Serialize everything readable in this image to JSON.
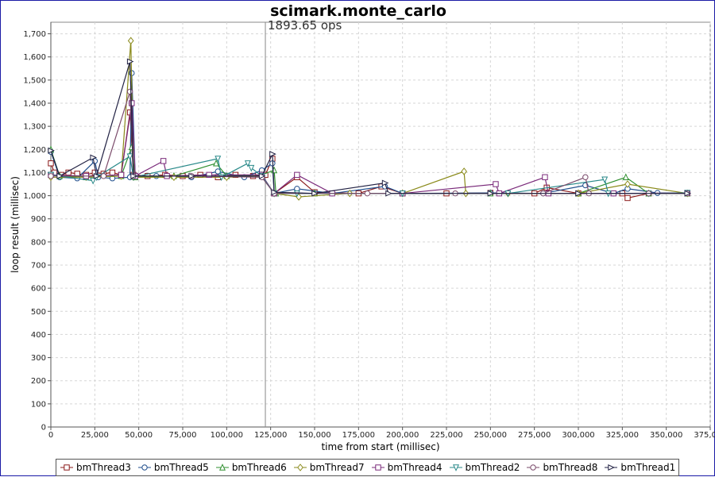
{
  "chart_data": {
    "type": "line",
    "title": "scimark.monte_carlo",
    "xlabel": "time from start (millisec)",
    "ylabel": "loop result (millisec)",
    "xlim": [
      0,
      375000
    ],
    "ylim": [
      0,
      1750
    ],
    "x_ticks": [
      "0",
      "25,000",
      "50,000",
      "75,000",
      "100,000",
      "125,000",
      "150,000",
      "175,000",
      "200,000",
      "225,000",
      "250,000",
      "275,000",
      "300,000",
      "325,000",
      "350,000",
      "375,000"
    ],
    "y_ticks": [
      "0",
      "100",
      "200",
      "300",
      "400",
      "500",
      "600",
      "700",
      "800",
      "900",
      "1,000",
      "1,100",
      "1,200",
      "1,300",
      "1,400",
      "1,500",
      "1,600",
      "1,700"
    ],
    "grid": true,
    "legend_position": "bottom",
    "annotation": {
      "text": "1893.65 ops",
      "x": 122000
    },
    "series": [
      {
        "name": "bmThread3",
        "marker": "square",
        "color": "#8b1a1a",
        "points": [
          [
            0,
            1140
          ],
          [
            2000,
            1100
          ],
          [
            6000,
            1090
          ],
          [
            10000,
            1100
          ],
          [
            15000,
            1095
          ],
          [
            20000,
            1090
          ],
          [
            25000,
            1100
          ],
          [
            30000,
            1095
          ],
          [
            35000,
            1100
          ],
          [
            40000,
            1090
          ],
          [
            45000,
            1360
          ],
          [
            47000,
            1090
          ],
          [
            55000,
            1085
          ],
          [
            65000,
            1090
          ],
          [
            75000,
            1085
          ],
          [
            85000,
            1090
          ],
          [
            95000,
            1080
          ],
          [
            105000,
            1090
          ],
          [
            115000,
            1085
          ],
          [
            122000,
            1090
          ],
          [
            126000,
            1160
          ],
          [
            127000,
            1010
          ],
          [
            140000,
            1080
          ],
          [
            150000,
            1015
          ],
          [
            175000,
            1010
          ],
          [
            188000,
            1040
          ],
          [
            200000,
            1010
          ],
          [
            225000,
            1010
          ],
          [
            250000,
            1012
          ],
          [
            275000,
            1010
          ],
          [
            282000,
            1035
          ],
          [
            300000,
            1010
          ],
          [
            325000,
            1010
          ],
          [
            328000,
            990
          ],
          [
            340000,
            1010
          ],
          [
            362000,
            1010
          ]
        ]
      },
      {
        "name": "bmThread5",
        "marker": "circle",
        "color": "#1f4e8c",
        "points": [
          [
            0,
            1190
          ],
          [
            5000,
            1080
          ],
          [
            15000,
            1075
          ],
          [
            25000,
            1150
          ],
          [
            27000,
            1080
          ],
          [
            35000,
            1075
          ],
          [
            45000,
            1080
          ],
          [
            46000,
            1530
          ],
          [
            48000,
            1085
          ],
          [
            60000,
            1085
          ],
          [
            80000,
            1080
          ],
          [
            95000,
            1105
          ],
          [
            110000,
            1080
          ],
          [
            120000,
            1110
          ],
          [
            126000,
            1140
          ],
          [
            127000,
            1010
          ],
          [
            140000,
            1030
          ],
          [
            160000,
            1010
          ],
          [
            190000,
            1040
          ],
          [
            200000,
            1010
          ],
          [
            250000,
            1012
          ],
          [
            280000,
            1010
          ],
          [
            304000,
            1045
          ],
          [
            320000,
            1010
          ],
          [
            328000,
            1030
          ],
          [
            345000,
            1012
          ],
          [
            362000,
            1012
          ]
        ]
      },
      {
        "name": "bmThread6",
        "marker": "triangle-up",
        "color": "#2f8f2f",
        "points": [
          [
            0,
            1200
          ],
          [
            5000,
            1085
          ],
          [
            20000,
            1080
          ],
          [
            40000,
            1085
          ],
          [
            46000,
            1210
          ],
          [
            48000,
            1080
          ],
          [
            70000,
            1085
          ],
          [
            94000,
            1140
          ],
          [
            100000,
            1085
          ],
          [
            120000,
            1090
          ],
          [
            127000,
            1110
          ],
          [
            128000,
            1010
          ],
          [
            150000,
            1010
          ],
          [
            200000,
            1010
          ],
          [
            250000,
            1010
          ],
          [
            300000,
            1010
          ],
          [
            327000,
            1080
          ],
          [
            340000,
            1010
          ],
          [
            362000,
            1010
          ]
        ]
      },
      {
        "name": "bmThread7",
        "marker": "diamond",
        "color": "#8a8a1a",
        "points": [
          [
            0,
            1080
          ],
          [
            20000,
            1080
          ],
          [
            40000,
            1085
          ],
          [
            45500,
            1670
          ],
          [
            47000,
            1080
          ],
          [
            70000,
            1080
          ],
          [
            100000,
            1080
          ],
          [
            120000,
            1085
          ],
          [
            127000,
            1010
          ],
          [
            141000,
            995
          ],
          [
            170000,
            1010
          ],
          [
            200000,
            1010
          ],
          [
            235000,
            1105
          ],
          [
            236000,
            1010
          ],
          [
            260000,
            1010
          ],
          [
            300000,
            1010
          ],
          [
            328000,
            1050
          ],
          [
            362000,
            1010
          ]
        ]
      },
      {
        "name": "bmThread4",
        "marker": "square",
        "color": "#7a2a7a",
        "points": [
          [
            0,
            1090
          ],
          [
            20000,
            1085
          ],
          [
            40000,
            1090
          ],
          [
            46000,
            1400
          ],
          [
            48000,
            1085
          ],
          [
            64000,
            1150
          ],
          [
            66000,
            1085
          ],
          [
            90000,
            1090
          ],
          [
            120000,
            1090
          ],
          [
            127000,
            1010
          ],
          [
            140000,
            1090
          ],
          [
            160000,
            1010
          ],
          [
            200000,
            1010
          ],
          [
            253000,
            1050
          ],
          [
            255000,
            1010
          ],
          [
            281000,
            1080
          ],
          [
            283000,
            1010
          ],
          [
            320000,
            1010
          ],
          [
            362000,
            1012
          ]
        ]
      },
      {
        "name": "bmThread2",
        "marker": "triangle-down",
        "color": "#2a8a8a",
        "points": [
          [
            0,
            1090
          ],
          [
            24000,
            1065
          ],
          [
            26000,
            1080
          ],
          [
            45000,
            1170
          ],
          [
            47000,
            1080
          ],
          [
            95000,
            1160
          ],
          [
            97000,
            1080
          ],
          [
            112000,
            1140
          ],
          [
            114000,
            1120
          ],
          [
            120000,
            1085
          ],
          [
            127000,
            1010
          ],
          [
            140000,
            1010
          ],
          [
            200000,
            1010
          ],
          [
            260000,
            1010
          ],
          [
            315000,
            1070
          ],
          [
            317000,
            1010
          ],
          [
            340000,
            1010
          ],
          [
            362000,
            1012
          ]
        ]
      },
      {
        "name": "bmThread8",
        "marker": "circle",
        "color": "#7a4a6a",
        "points": [
          [
            0,
            1085
          ],
          [
            30000,
            1085
          ],
          [
            45000,
            1450
          ],
          [
            47000,
            1085
          ],
          [
            80000,
            1085
          ],
          [
            120000,
            1080
          ],
          [
            127000,
            1010
          ],
          [
            180000,
            1010
          ],
          [
            230000,
            1010
          ],
          [
            280000,
            1010
          ],
          [
            304000,
            1080
          ],
          [
            306000,
            1010
          ],
          [
            340000,
            1010
          ],
          [
            362000,
            1010
          ]
        ]
      },
      {
        "name": "bmThread1",
        "marker": "triangle-right",
        "color": "#222244",
        "points": [
          [
            0,
            1195
          ],
          [
            5000,
            1085
          ],
          [
            24000,
            1165
          ],
          [
            26000,
            1085
          ],
          [
            45000,
            1580
          ],
          [
            47000,
            1085
          ],
          [
            80000,
            1085
          ],
          [
            120000,
            1085
          ],
          [
            126000,
            1180
          ],
          [
            127000,
            1015
          ],
          [
            150000,
            1010
          ],
          [
            190000,
            1055
          ],
          [
            192000,
            1010
          ],
          [
            250000,
            1010
          ],
          [
            300000,
            1010
          ],
          [
            362000,
            1010
          ]
        ]
      }
    ]
  }
}
